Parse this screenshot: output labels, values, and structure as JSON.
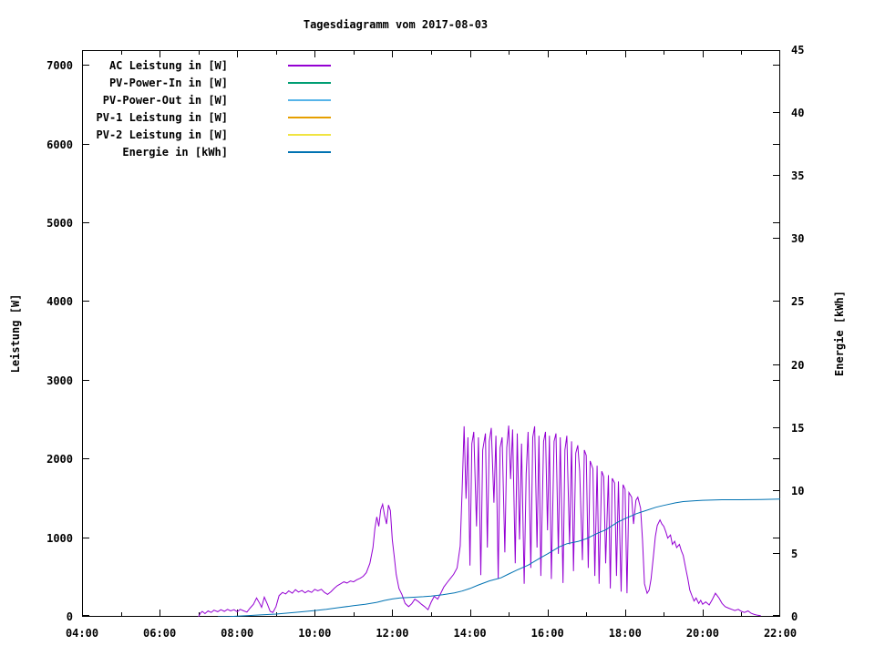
{
  "chart_data": {
    "type": "line",
    "title": "Tagesdiagramm vom 2017-08-03",
    "grid": false,
    "legend_position": "top-left-inside",
    "x": {
      "unit": "time-of-day",
      "range_hours": [
        4,
        22
      ],
      "tick_step_hours": 1,
      "label_step_hours": 2,
      "tick_labels": [
        "04:00",
        "06:00",
        "08:00",
        "10:00",
        "12:00",
        "14:00",
        "16:00",
        "18:00",
        "20:00",
        "22:00"
      ]
    },
    "y1": {
      "label": "Leistung [W]",
      "range": [
        0,
        7200
      ],
      "ticks": [
        0,
        1000,
        2000,
        3000,
        4000,
        5000,
        6000,
        7000
      ]
    },
    "y2": {
      "label": "Energie [kWh]",
      "range": [
        0,
        45
      ],
      "ticks": [
        0,
        5,
        10,
        15,
        20,
        25,
        30,
        35,
        40,
        45
      ]
    },
    "series": [
      {
        "name": "AC Leistung in [W]",
        "color": "#9400d3",
        "axis": "y1",
        "visible_in_plot": true,
        "points": [
          [
            7.0,
            0
          ],
          [
            7.05,
            45
          ],
          [
            7.1,
            70
          ],
          [
            7.17,
            40
          ],
          [
            7.25,
            75
          ],
          [
            7.33,
            55
          ],
          [
            7.4,
            85
          ],
          [
            7.5,
            65
          ],
          [
            7.58,
            90
          ],
          [
            7.67,
            70
          ],
          [
            7.75,
            95
          ],
          [
            7.83,
            75
          ],
          [
            7.92,
            90
          ],
          [
            8.0,
            65
          ],
          [
            8.08,
            95
          ],
          [
            8.17,
            75
          ],
          [
            8.25,
            60
          ],
          [
            8.33,
            110
          ],
          [
            8.42,
            160
          ],
          [
            8.5,
            240
          ],
          [
            8.58,
            170
          ],
          [
            8.63,
            120
          ],
          [
            8.7,
            250
          ],
          [
            8.78,
            160
          ],
          [
            8.85,
            70
          ],
          [
            8.92,
            55
          ],
          [
            9.0,
            130
          ],
          [
            9.08,
            270
          ],
          [
            9.17,
            310
          ],
          [
            9.25,
            290
          ],
          [
            9.33,
            330
          ],
          [
            9.42,
            300
          ],
          [
            9.5,
            345
          ],
          [
            9.58,
            315
          ],
          [
            9.67,
            335
          ],
          [
            9.75,
            305
          ],
          [
            9.83,
            330
          ],
          [
            9.92,
            310
          ],
          [
            10.0,
            350
          ],
          [
            10.08,
            330
          ],
          [
            10.17,
            350
          ],
          [
            10.25,
            310
          ],
          [
            10.33,
            285
          ],
          [
            10.42,
            320
          ],
          [
            10.5,
            360
          ],
          [
            10.58,
            395
          ],
          [
            10.67,
            420
          ],
          [
            10.75,
            445
          ],
          [
            10.83,
            430
          ],
          [
            10.92,
            455
          ],
          [
            11.0,
            445
          ],
          [
            11.08,
            470
          ],
          [
            11.17,
            490
          ],
          [
            11.25,
            515
          ],
          [
            11.33,
            560
          ],
          [
            11.42,
            680
          ],
          [
            11.5,
            880
          ],
          [
            11.55,
            1120
          ],
          [
            11.6,
            1270
          ],
          [
            11.65,
            1150
          ],
          [
            11.7,
            1360
          ],
          [
            11.75,
            1430
          ],
          [
            11.8,
            1290
          ],
          [
            11.85,
            1180
          ],
          [
            11.9,
            1420
          ],
          [
            11.95,
            1350
          ],
          [
            12.0,
            980
          ],
          [
            12.05,
            760
          ],
          [
            12.1,
            540
          ],
          [
            12.17,
            360
          ],
          [
            12.25,
            280
          ],
          [
            12.33,
            170
          ],
          [
            12.42,
            130
          ],
          [
            12.5,
            165
          ],
          [
            12.58,
            225
          ],
          [
            12.67,
            195
          ],
          [
            12.75,
            160
          ],
          [
            12.83,
            130
          ],
          [
            12.92,
            90
          ],
          [
            13.0,
            185
          ],
          [
            13.08,
            260
          ],
          [
            13.17,
            225
          ],
          [
            13.25,
            300
          ],
          [
            13.33,
            380
          ],
          [
            13.42,
            440
          ],
          [
            13.5,
            490
          ],
          [
            13.58,
            540
          ],
          [
            13.67,
            620
          ],
          [
            13.75,
            900
          ],
          [
            13.8,
            1600
          ],
          [
            13.85,
            2420
          ],
          [
            13.9,
            1500
          ],
          [
            13.95,
            2280
          ],
          [
            14.0,
            650
          ],
          [
            14.05,
            2200
          ],
          [
            14.1,
            2350
          ],
          [
            14.17,
            1150
          ],
          [
            14.22,
            2280
          ],
          [
            14.28,
            530
          ],
          [
            14.33,
            2120
          ],
          [
            14.4,
            2330
          ],
          [
            14.45,
            880
          ],
          [
            14.5,
            2230
          ],
          [
            14.55,
            2400
          ],
          [
            14.62,
            1450
          ],
          [
            14.67,
            2300
          ],
          [
            14.73,
            480
          ],
          [
            14.78,
            2150
          ],
          [
            14.83,
            2280
          ],
          [
            14.9,
            820
          ],
          [
            14.95,
            2150
          ],
          [
            15.0,
            2430
          ],
          [
            15.05,
            1750
          ],
          [
            15.1,
            2380
          ],
          [
            15.17,
            680
          ],
          [
            15.22,
            2330
          ],
          [
            15.28,
            980
          ],
          [
            15.33,
            2200
          ],
          [
            15.4,
            420
          ],
          [
            15.45,
            1820
          ],
          [
            15.5,
            2350
          ],
          [
            15.57,
            620
          ],
          [
            15.62,
            2280
          ],
          [
            15.67,
            2420
          ],
          [
            15.73,
            880
          ],
          [
            15.78,
            2300
          ],
          [
            15.83,
            520
          ],
          [
            15.9,
            2230
          ],
          [
            15.95,
            2350
          ],
          [
            16.0,
            1100
          ],
          [
            16.05,
            2300
          ],
          [
            16.1,
            480
          ],
          [
            16.17,
            2230
          ],
          [
            16.22,
            2330
          ],
          [
            16.28,
            800
          ],
          [
            16.33,
            2280
          ],
          [
            16.4,
            430
          ],
          [
            16.45,
            2120
          ],
          [
            16.5,
            2300
          ],
          [
            16.57,
            920
          ],
          [
            16.62,
            2230
          ],
          [
            16.67,
            580
          ],
          [
            16.73,
            2080
          ],
          [
            16.78,
            2180
          ],
          [
            16.83,
            1850
          ],
          [
            16.9,
            720
          ],
          [
            16.95,
            2120
          ],
          [
            17.0,
            2050
          ],
          [
            17.05,
            620
          ],
          [
            17.1,
            1980
          ],
          [
            17.17,
            1880
          ],
          [
            17.22,
            520
          ],
          [
            17.28,
            1920
          ],
          [
            17.33,
            420
          ],
          [
            17.4,
            1850
          ],
          [
            17.45,
            1780
          ],
          [
            17.5,
            680
          ],
          [
            17.57,
            1800
          ],
          [
            17.62,
            360
          ],
          [
            17.67,
            1760
          ],
          [
            17.73,
            1700
          ],
          [
            17.78,
            520
          ],
          [
            17.83,
            1720
          ],
          [
            17.9,
            320
          ],
          [
            17.95,
            1680
          ],
          [
            18.0,
            1620
          ],
          [
            18.05,
            300
          ],
          [
            18.1,
            1580
          ],
          [
            18.17,
            1520
          ],
          [
            18.22,
            1180
          ],
          [
            18.28,
            1480
          ],
          [
            18.33,
            1520
          ],
          [
            18.4,
            1380
          ],
          [
            18.45,
            980
          ],
          [
            18.5,
            420
          ],
          [
            18.57,
            300
          ],
          [
            18.62,
            340
          ],
          [
            18.67,
            480
          ],
          [
            18.73,
            760
          ],
          [
            18.78,
            1020
          ],
          [
            18.83,
            1160
          ],
          [
            18.9,
            1230
          ],
          [
            18.95,
            1180
          ],
          [
            19.0,
            1150
          ],
          [
            19.05,
            1080
          ],
          [
            19.1,
            1000
          ],
          [
            19.17,
            1040
          ],
          [
            19.22,
            920
          ],
          [
            19.28,
            960
          ],
          [
            19.33,
            880
          ],
          [
            19.4,
            920
          ],
          [
            19.45,
            840
          ],
          [
            19.5,
            780
          ],
          [
            19.57,
            600
          ],
          [
            19.62,
            480
          ],
          [
            19.67,
            340
          ],
          [
            19.73,
            260
          ],
          [
            19.78,
            200
          ],
          [
            19.83,
            240
          ],
          [
            19.9,
            170
          ],
          [
            19.95,
            210
          ],
          [
            20.0,
            160
          ],
          [
            20.08,
            190
          ],
          [
            20.17,
            150
          ],
          [
            20.25,
            220
          ],
          [
            20.33,
            300
          ],
          [
            20.42,
            240
          ],
          [
            20.5,
            170
          ],
          [
            20.58,
            130
          ],
          [
            20.67,
            110
          ],
          [
            20.75,
            95
          ],
          [
            20.83,
            80
          ],
          [
            20.92,
            95
          ],
          [
            21.0,
            70
          ],
          [
            21.08,
            55
          ],
          [
            21.17,
            75
          ],
          [
            21.25,
            45
          ],
          [
            21.33,
            30
          ],
          [
            21.42,
            20
          ],
          [
            21.5,
            15
          ]
        ]
      },
      {
        "name": "PV-Power-In in [W]",
        "color": "#009e73",
        "axis": "y1",
        "visible_in_plot": false,
        "points": []
      },
      {
        "name": "PV-Power-Out in [W]",
        "color": "#56b4e9",
        "axis": "y1",
        "visible_in_plot": false,
        "points": []
      },
      {
        "name": "PV-1 Leistung in [W]",
        "color": "#e69f00",
        "axis": "y1",
        "visible_in_plot": false,
        "points": []
      },
      {
        "name": "PV-2 Leistung in [W]",
        "color": "#f0e442",
        "axis": "y1",
        "visible_in_plot": false,
        "points": []
      },
      {
        "name": "Energie in [kWh]",
        "color": "#0072b2",
        "axis": "y2",
        "visible_in_plot": true,
        "points": [
          [
            7.5,
            0
          ],
          [
            7.8,
            0.02
          ],
          [
            8.0,
            0.05
          ],
          [
            8.3,
            0.1
          ],
          [
            8.6,
            0.15
          ],
          [
            9.0,
            0.22
          ],
          [
            9.3,
            0.3
          ],
          [
            9.6,
            0.38
          ],
          [
            10.0,
            0.5
          ],
          [
            10.3,
            0.6
          ],
          [
            10.6,
            0.72
          ],
          [
            11.0,
            0.88
          ],
          [
            11.3,
            1.0
          ],
          [
            11.6,
            1.15
          ],
          [
            11.8,
            1.3
          ],
          [
            12.0,
            1.42
          ],
          [
            12.2,
            1.5
          ],
          [
            12.5,
            1.55
          ],
          [
            12.8,
            1.6
          ],
          [
            13.0,
            1.65
          ],
          [
            13.3,
            1.75
          ],
          [
            13.6,
            1.9
          ],
          [
            13.8,
            2.05
          ],
          [
            14.0,
            2.25
          ],
          [
            14.2,
            2.5
          ],
          [
            14.5,
            2.85
          ],
          [
            14.8,
            3.1
          ],
          [
            15.0,
            3.4
          ],
          [
            15.2,
            3.7
          ],
          [
            15.5,
            4.1
          ],
          [
            15.8,
            4.65
          ],
          [
            16.0,
            5.0
          ],
          [
            16.3,
            5.55
          ],
          [
            16.5,
            5.8
          ],
          [
            16.8,
            6.0
          ],
          [
            17.0,
            6.2
          ],
          [
            17.3,
            6.65
          ],
          [
            17.5,
            6.9
          ],
          [
            17.8,
            7.5
          ],
          [
            18.0,
            7.8
          ],
          [
            18.3,
            8.2
          ],
          [
            18.5,
            8.4
          ],
          [
            18.8,
            8.7
          ],
          [
            19.0,
            8.85
          ],
          [
            19.3,
            9.05
          ],
          [
            19.5,
            9.15
          ],
          [
            19.8,
            9.22
          ],
          [
            20.0,
            9.25
          ],
          [
            20.5,
            9.3
          ],
          [
            21.0,
            9.3
          ],
          [
            21.5,
            9.32
          ],
          [
            22.0,
            9.35
          ]
        ]
      }
    ]
  }
}
